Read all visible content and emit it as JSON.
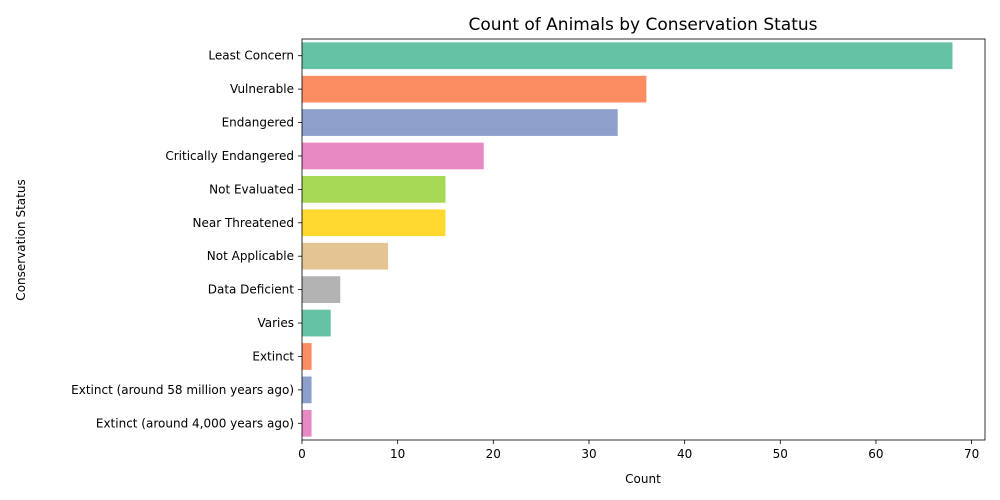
{
  "chart_data": {
    "type": "bar",
    "orientation": "horizontal",
    "title": "Count of Animals by Conservation Status",
    "xlabel": "Count",
    "ylabel": "Conservation Status",
    "xlim": [
      0,
      71.4
    ],
    "xticks": [
      0,
      10,
      20,
      30,
      40,
      50,
      60,
      70
    ],
    "grid": false,
    "categories": [
      "Least Concern",
      "Vulnerable",
      "Endangered",
      "Critically Endangered",
      "Not Evaluated",
      "Near Threatened",
      "Not Applicable",
      "Data Deficient",
      "Varies",
      "Extinct",
      "Extinct (around 58 million years ago)",
      "Extinct (around 4,000 years ago)"
    ],
    "values": [
      68,
      36,
      33,
      19,
      15,
      15,
      9,
      4,
      3,
      1,
      1,
      1
    ],
    "colors": [
      "#66c2a5",
      "#fc8d62",
      "#8da0cb",
      "#e78ac3",
      "#a6d854",
      "#ffd92f",
      "#e5c494",
      "#b3b3b3",
      "#66c2a5",
      "#fc8d62",
      "#8da0cb",
      "#e78ac3"
    ]
  }
}
